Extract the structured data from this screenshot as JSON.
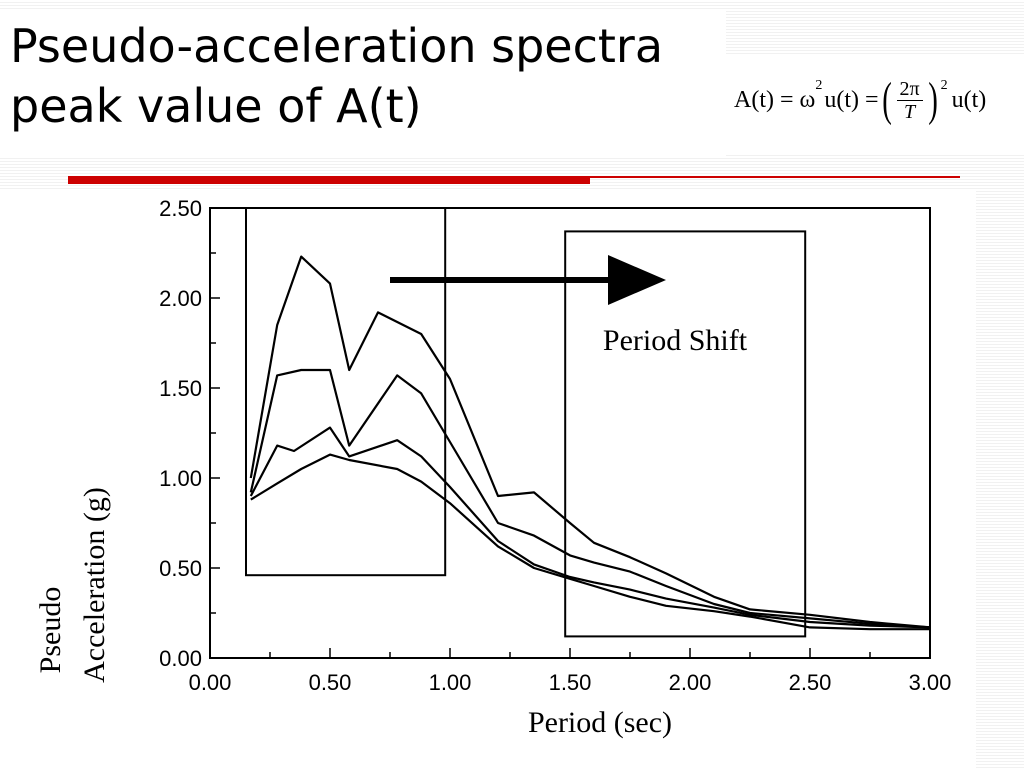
{
  "slide": {
    "title_line1": "Pseudo-acceleration spectra",
    "title_line2": "peak value of A(t)"
  },
  "formula": {
    "lhs": "A(t) = ω",
    "exp": "2",
    "mid": "u(t) =",
    "frac_num": "2π",
    "frac_den": "T",
    "outer_exp": "2",
    "rhs": "u(t)"
  },
  "chart_data": {
    "type": "line",
    "xlabel": "Period   (sec)",
    "ylabel_line1": "Pseudo",
    "ylabel_line2": "Acceleration   (g)",
    "xlim": [
      0.0,
      3.0
    ],
    "ylim": [
      0.0,
      2.5
    ],
    "x_ticks": [
      "0.00",
      "0.50",
      "1.00",
      "1.50",
      "2.00",
      "2.50",
      "3.00"
    ],
    "y_ticks": [
      "0.00",
      "0.50",
      "1.00",
      "1.50",
      "2.00",
      "2.50"
    ],
    "grid": false,
    "annotation": "Period Shift",
    "highlight_boxes": [
      {
        "x0": 0.15,
        "x1": 0.98,
        "y0": 0.46,
        "y1": 2.5
      },
      {
        "x0": 1.48,
        "x1": 2.48,
        "y0": 0.12,
        "y1": 2.37
      }
    ],
    "arrow": {
      "x0": 0.75,
      "x1": 1.9,
      "y": 2.1
    },
    "series": [
      {
        "x": [
          0.17,
          0.28,
          0.38,
          0.5,
          0.58,
          0.7,
          0.88,
          1.0,
          1.2,
          1.35,
          1.5,
          1.6,
          1.75,
          1.9,
          2.1,
          2.25,
          2.5,
          2.75,
          3.0
        ],
        "y": [
          1.0,
          1.85,
          2.23,
          2.08,
          1.6,
          1.92,
          1.8,
          1.55,
          0.9,
          0.92,
          0.75,
          0.64,
          0.56,
          0.47,
          0.34,
          0.27,
          0.24,
          0.2,
          0.17
        ]
      },
      {
        "x": [
          0.17,
          0.28,
          0.38,
          0.5,
          0.58,
          0.78,
          0.88,
          1.0,
          1.2,
          1.35,
          1.5,
          1.6,
          1.75,
          1.9,
          2.1,
          2.25,
          2.5,
          2.75,
          3.0
        ],
        "y": [
          0.92,
          1.57,
          1.6,
          1.6,
          1.18,
          1.57,
          1.47,
          1.2,
          0.75,
          0.68,
          0.57,
          0.53,
          0.48,
          0.4,
          0.3,
          0.25,
          0.22,
          0.19,
          0.17
        ]
      },
      {
        "x": [
          0.17,
          0.28,
          0.35,
          0.5,
          0.58,
          0.78,
          0.88,
          1.0,
          1.2,
          1.35,
          1.5,
          1.6,
          1.75,
          1.9,
          2.1,
          2.25,
          2.5,
          2.75,
          3.0
        ],
        "y": [
          0.9,
          1.18,
          1.15,
          1.28,
          1.12,
          1.21,
          1.12,
          0.95,
          0.65,
          0.52,
          0.45,
          0.42,
          0.38,
          0.33,
          0.28,
          0.24,
          0.2,
          0.18,
          0.17
        ]
      },
      {
        "x": [
          0.17,
          0.28,
          0.38,
          0.5,
          0.58,
          0.78,
          0.88,
          1.0,
          1.2,
          1.35,
          1.5,
          1.6,
          1.75,
          1.9,
          2.1,
          2.25,
          2.5,
          2.75,
          3.0
        ],
        "y": [
          0.88,
          0.97,
          1.05,
          1.13,
          1.1,
          1.05,
          0.98,
          0.86,
          0.62,
          0.5,
          0.44,
          0.4,
          0.34,
          0.29,
          0.26,
          0.23,
          0.17,
          0.16,
          0.16
        ]
      }
    ]
  }
}
